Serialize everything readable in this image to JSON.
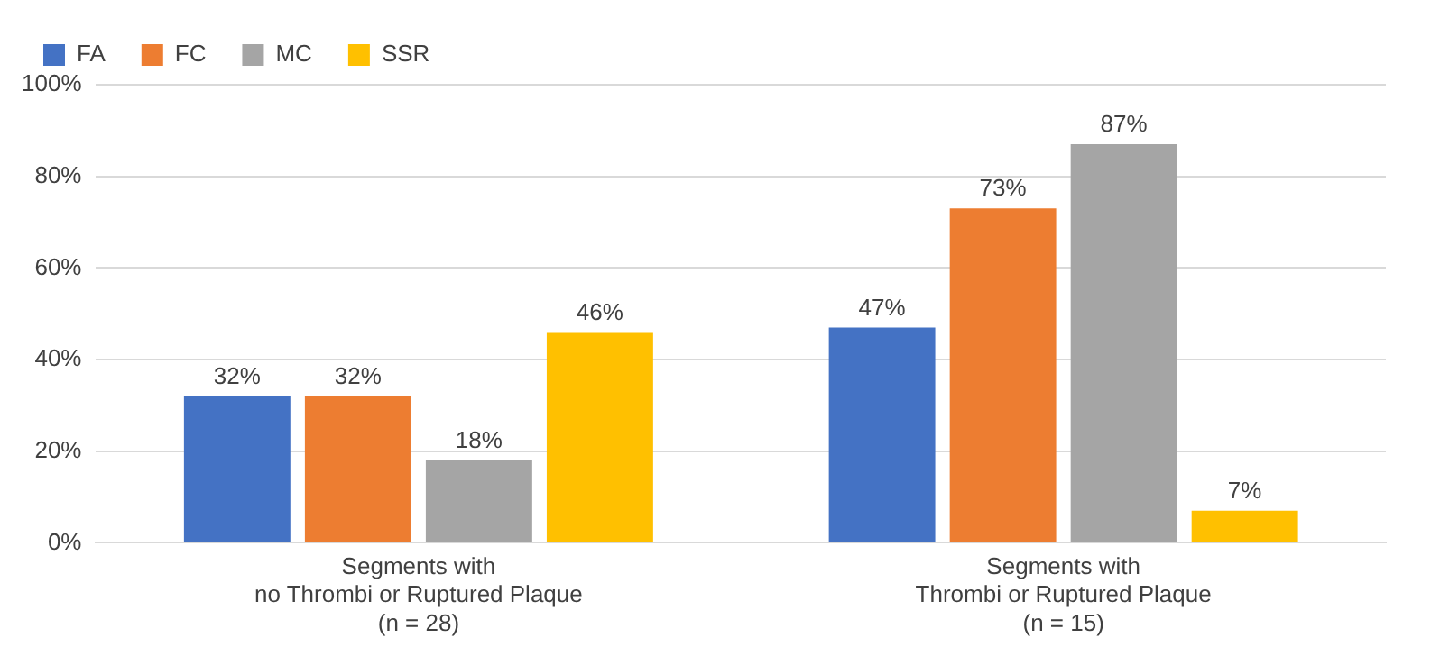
{
  "chart_data": {
    "type": "bar",
    "categories": [
      "Segments with\nno Thrombi or Ruptured Plaque\n(n = 28)",
      "Segments with\nThrombi or Ruptured Plaque\n(n = 15)"
    ],
    "series": [
      {
        "name": "FA",
        "color": "#4472c4",
        "values": [
          32,
          47
        ],
        "value_labels": [
          "32%",
          "47%"
        ]
      },
      {
        "name": "FC",
        "color": "#ed7d31",
        "values": [
          32,
          73
        ],
        "value_labels": [
          "32%",
          "73%"
        ]
      },
      {
        "name": "MC",
        "color": "#a5a5a5",
        "values": [
          18,
          87
        ],
        "value_labels": [
          "18%",
          "87%"
        ]
      },
      {
        "name": "SSR",
        "color": "#ffc000",
        "values": [
          46,
          7
        ],
        "value_labels": [
          "46%",
          "7%"
        ]
      }
    ],
    "ylim": [
      0,
      100
    ],
    "yticks": [
      {
        "value": 0,
        "label": "0%"
      },
      {
        "value": 20,
        "label": "20%"
      },
      {
        "value": 40,
        "label": "40%"
      },
      {
        "value": 60,
        "label": "60%"
      },
      {
        "value": 80,
        "label": "80%"
      },
      {
        "value": 100,
        "label": "100%"
      }
    ],
    "grid": "y",
    "legend": "top left"
  }
}
